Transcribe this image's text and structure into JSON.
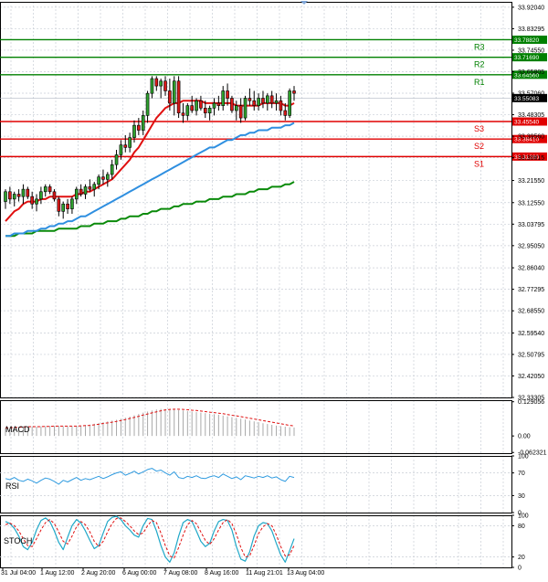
{
  "chart_data": {
    "type": "candlestick",
    "price_axis": {
      "ylim": [
        32.333,
        33.92
      ],
      "ticks": [
        "33.92040",
        "33.83295",
        "33.74550",
        "33.65805",
        "33.57060",
        "33.48305",
        "33.39560",
        "33.30815",
        "33.21550",
        "33.12550",
        "33.03795",
        "32.95050",
        "32.86040",
        "32.77295",
        "32.68550",
        "32.59540",
        "32.50795",
        "32.42050",
        "32.33305"
      ],
      "current_price": "33.55083"
    },
    "time_labels": [
      "31 Jul 04:00",
      "1 Aug 12:00",
      "2 Aug 20:00",
      "6 Aug 00:00",
      "7 Aug 08:00",
      "8 Aug 16:00",
      "11 Aug 21:01",
      "13 Aug 04:00"
    ],
    "levels": [
      {
        "name": "R3",
        "value": 33.7882,
        "label": "33.78820",
        "color": "#008000"
      },
      {
        "name": "R2",
        "value": 33.7169,
        "label": "33.71690",
        "color": "#008000"
      },
      {
        "name": "R1",
        "value": 33.6456,
        "label": "33.64560",
        "color": "#008000"
      },
      {
        "name": "S3",
        "value": 33.4554,
        "label": "33.45540",
        "color": "#e00000"
      },
      {
        "name": "S2",
        "value": 33.3841,
        "label": "33.38410",
        "color": "#e00000"
      },
      {
        "name": "S1",
        "value": 33.3128,
        "label": "33.31280",
        "color": "#e00000"
      }
    ],
    "candles": [
      [
        33.13,
        33.18,
        33.1,
        33.17
      ],
      [
        33.17,
        33.19,
        33.12,
        33.14
      ],
      [
        33.14,
        33.17,
        33.11,
        33.16
      ],
      [
        33.16,
        33.18,
        33.13,
        33.15
      ],
      [
        33.15,
        33.2,
        33.12,
        33.18
      ],
      [
        33.18,
        33.19,
        33.14,
        33.15
      ],
      [
        33.15,
        33.17,
        33.1,
        33.12
      ],
      [
        33.12,
        33.16,
        33.09,
        33.14
      ],
      [
        33.14,
        33.19,
        33.12,
        33.17
      ],
      [
        33.17,
        33.2,
        33.15,
        33.19
      ],
      [
        33.19,
        33.2,
        33.16,
        33.17
      ],
      [
        33.17,
        33.18,
        33.13,
        33.14
      ],
      [
        33.14,
        33.15,
        33.07,
        33.09
      ],
      [
        33.09,
        33.13,
        33.06,
        33.12
      ],
      [
        33.12,
        33.14,
        33.08,
        33.1
      ],
      [
        33.1,
        33.15,
        33.08,
        33.14
      ],
      [
        33.14,
        33.19,
        33.12,
        33.18
      ],
      [
        33.18,
        33.2,
        33.15,
        33.16
      ],
      [
        33.16,
        33.2,
        33.14,
        33.19
      ],
      [
        33.19,
        33.22,
        33.17,
        33.18
      ],
      [
        33.18,
        33.21,
        33.15,
        33.2
      ],
      [
        33.2,
        33.24,
        33.18,
        33.23
      ],
      [
        33.23,
        33.26,
        33.2,
        33.22
      ],
      [
        33.22,
        33.25,
        33.19,
        33.24
      ],
      [
        33.24,
        33.3,
        33.22,
        33.28
      ],
      [
        33.28,
        33.34,
        33.26,
        33.32
      ],
      [
        33.32,
        33.38,
        33.3,
        33.36
      ],
      [
        33.36,
        33.4,
        33.33,
        33.35
      ],
      [
        33.35,
        33.41,
        33.33,
        33.39
      ],
      [
        33.39,
        33.46,
        33.37,
        33.44
      ],
      [
        33.44,
        33.47,
        33.4,
        33.42
      ],
      [
        33.42,
        33.5,
        33.4,
        33.48
      ],
      [
        33.48,
        33.58,
        33.45,
        33.57
      ],
      [
        33.57,
        33.64,
        33.55,
        33.63
      ],
      [
        33.63,
        33.64,
        33.58,
        33.6
      ],
      [
        33.6,
        33.63,
        33.55,
        33.62
      ],
      [
        33.62,
        33.64,
        33.56,
        33.58
      ],
      [
        33.58,
        33.63,
        33.5,
        33.53
      ],
      [
        33.53,
        33.64,
        33.48,
        33.62
      ],
      [
        33.62,
        33.64,
        33.47,
        33.49
      ],
      [
        33.49,
        33.53,
        33.45,
        33.48
      ],
      [
        33.48,
        33.53,
        33.46,
        33.52
      ],
      [
        33.52,
        33.56,
        33.49,
        33.5
      ],
      [
        33.5,
        33.55,
        33.48,
        33.54
      ],
      [
        33.54,
        33.56,
        33.5,
        33.51
      ],
      [
        33.51,
        33.54,
        33.47,
        33.49
      ],
      [
        33.49,
        33.52,
        33.46,
        33.51
      ],
      [
        33.51,
        33.55,
        33.48,
        33.53
      ],
      [
        33.53,
        33.56,
        33.5,
        33.52
      ],
      [
        33.52,
        33.6,
        33.5,
        33.58
      ],
      [
        33.58,
        33.61,
        33.52,
        33.55
      ],
      [
        33.55,
        33.56,
        33.49,
        33.5
      ],
      [
        33.5,
        33.54,
        33.46,
        33.52
      ],
      [
        33.52,
        33.55,
        33.45,
        33.47
      ],
      [
        33.47,
        33.56,
        33.46,
        33.55
      ],
      [
        33.55,
        33.59,
        33.52,
        33.54
      ],
      [
        33.54,
        33.58,
        33.5,
        33.52
      ],
      [
        33.52,
        33.57,
        33.5,
        33.55
      ],
      [
        33.55,
        33.58,
        33.51,
        33.53
      ],
      [
        33.53,
        33.57,
        33.5,
        33.56
      ],
      [
        33.56,
        33.58,
        33.51,
        33.53
      ],
      [
        33.53,
        33.57,
        33.5,
        33.54
      ],
      [
        33.54,
        33.56,
        33.48,
        33.5
      ],
      [
        33.5,
        33.53,
        33.46,
        33.48
      ],
      [
        33.48,
        33.59,
        33.47,
        33.58
      ],
      [
        33.58,
        33.6,
        33.54,
        33.57
      ]
    ],
    "ma_fast": [
      33.05,
      33.07,
      33.09,
      33.1,
      33.12,
      33.13,
      33.13,
      33.13,
      33.14,
      33.14,
      33.15,
      33.15,
      33.15,
      33.15,
      33.15,
      33.15,
      33.16,
      33.16,
      33.17,
      33.17,
      33.18,
      33.19,
      33.2,
      33.21,
      33.22,
      33.24,
      33.26,
      33.28,
      33.3,
      33.33,
      33.35,
      33.38,
      33.41,
      33.44,
      33.47,
      33.49,
      33.51,
      33.52,
      33.53,
      33.53,
      33.54,
      33.54,
      33.54,
      33.54,
      33.54,
      33.53,
      33.53,
      33.53,
      33.53,
      33.53,
      33.53,
      33.53,
      33.52,
      33.52,
      33.52,
      33.52,
      33.52,
      33.52,
      33.53,
      33.53,
      33.53,
      33.53,
      33.53,
      33.52,
      33.52,
      33.53
    ],
    "ma_mid": [
      32.99,
      32.99,
      33.0,
      33.0,
      33.0,
      33.01,
      33.01,
      33.01,
      33.02,
      33.02,
      33.03,
      33.03,
      33.04,
      33.04,
      33.05,
      33.05,
      33.06,
      33.07,
      33.07,
      33.08,
      33.09,
      33.1,
      33.11,
      33.12,
      33.13,
      33.14,
      33.15,
      33.16,
      33.17,
      33.18,
      33.19,
      33.2,
      33.21,
      33.22,
      33.23,
      33.24,
      33.25,
      33.26,
      33.27,
      33.28,
      33.29,
      33.3,
      33.31,
      33.32,
      33.33,
      33.34,
      33.35,
      33.35,
      33.36,
      33.37,
      33.38,
      33.38,
      33.39,
      33.4,
      33.4,
      33.41,
      33.41,
      33.42,
      33.42,
      33.42,
      33.43,
      33.43,
      33.43,
      33.44,
      33.44,
      33.45
    ],
    "ma_slow": [
      32.99,
      32.99,
      32.99,
      33.0,
      33.0,
      33.0,
      33.0,
      33.01,
      33.01,
      33.01,
      33.01,
      33.01,
      33.02,
      33.02,
      33.02,
      33.02,
      33.02,
      33.03,
      33.03,
      33.03,
      33.04,
      33.04,
      33.04,
      33.05,
      33.05,
      33.05,
      33.06,
      33.06,
      33.07,
      33.07,
      33.07,
      33.08,
      33.08,
      33.09,
      33.09,
      33.1,
      33.1,
      33.1,
      33.11,
      33.11,
      33.12,
      33.12,
      33.12,
      33.13,
      33.13,
      33.13,
      33.14,
      33.14,
      33.14,
      33.15,
      33.15,
      33.15,
      33.16,
      33.16,
      33.16,
      33.17,
      33.17,
      33.18,
      33.18,
      33.18,
      33.19,
      33.19,
      33.19,
      33.2,
      33.2,
      33.21
    ],
    "macd": {
      "label": "MACD",
      "ticks": [
        "0.129056",
        "0.00",
        "-0.062321"
      ],
      "ylim": [
        -0.065,
        0.135
      ],
      "histogram": [
        0.03,
        0.032,
        0.033,
        0.035,
        0.036,
        0.036,
        0.036,
        0.035,
        0.036,
        0.037,
        0.038,
        0.038,
        0.038,
        0.037,
        0.037,
        0.037,
        0.038,
        0.039,
        0.041,
        0.043,
        0.046,
        0.049,
        0.052,
        0.055,
        0.058,
        0.061,
        0.065,
        0.069,
        0.073,
        0.078,
        0.083,
        0.088,
        0.092,
        0.096,
        0.1,
        0.102,
        0.102,
        0.101,
        0.1,
        0.098,
        0.096,
        0.094,
        0.092,
        0.09,
        0.088,
        0.086,
        0.084,
        0.082,
        0.08,
        0.077,
        0.074,
        0.071,
        0.068,
        0.065,
        0.062,
        0.058,
        0.055,
        0.052,
        0.048,
        0.045,
        0.042,
        0.039,
        0.037,
        0.035,
        0.033,
        0.032
      ],
      "signal": [
        0.03,
        0.031,
        0.032,
        0.033,
        0.034,
        0.035,
        0.035,
        0.035,
        0.035,
        0.036,
        0.036,
        0.037,
        0.037,
        0.037,
        0.037,
        0.037,
        0.037,
        0.038,
        0.039,
        0.04,
        0.042,
        0.044,
        0.047,
        0.049,
        0.052,
        0.055,
        0.058,
        0.062,
        0.066,
        0.07,
        0.074,
        0.079,
        0.083,
        0.087,
        0.091,
        0.095,
        0.098,
        0.1,
        0.101,
        0.101,
        0.1,
        0.099,
        0.097,
        0.096,
        0.094,
        0.092,
        0.09,
        0.088,
        0.086,
        0.084,
        0.081,
        0.078,
        0.076,
        0.073,
        0.07,
        0.067,
        0.064,
        0.061,
        0.058,
        0.055,
        0.052,
        0.049,
        0.046,
        0.043,
        0.04,
        0.038
      ]
    },
    "rsi": {
      "label": "RSI",
      "ticks": [
        "100",
        "70",
        "30",
        "0"
      ],
      "ylim": [
        0,
        100
      ],
      "values": [
        60,
        58,
        62,
        57,
        55,
        59,
        56,
        52,
        57,
        61,
        59,
        55,
        50,
        57,
        54,
        58,
        62,
        57,
        60,
        58,
        61,
        64,
        60,
        63,
        67,
        70,
        72,
        66,
        69,
        73,
        68,
        72,
        76,
        78,
        73,
        75,
        70,
        66,
        72,
        62,
        60,
        64,
        62,
        65,
        61,
        60,
        63,
        65,
        62,
        68,
        64,
        60,
        63,
        58,
        65,
        63,
        61,
        64,
        62,
        65,
        61,
        63,
        58,
        55,
        64,
        62
      ]
    },
    "stoch": {
      "label": "STOCH",
      "ticks": [
        "100",
        "80",
        "20",
        "0"
      ],
      "ylim": [
        0,
        100
      ],
      "k": [
        88,
        84,
        75,
        60,
        40,
        34,
        48,
        72,
        90,
        95,
        88,
        70,
        48,
        34,
        58,
        80,
        92,
        85,
        70,
        52,
        36,
        42,
        66,
        88,
        96,
        98,
        92,
        80,
        72,
        62,
        58,
        80,
        94,
        92,
        70,
        42,
        20,
        10,
        28,
        60,
        86,
        92,
        88,
        70,
        50,
        40,
        46,
        70,
        88,
        92,
        90,
        72,
        40,
        16,
        12,
        30,
        60,
        80,
        86,
        84,
        70,
        46,
        24,
        10,
        32,
        55
      ],
      "d": [
        82,
        85,
        80,
        70,
        55,
        42,
        40,
        55,
        72,
        86,
        92,
        84,
        68,
        50,
        45,
        60,
        78,
        88,
        82,
        68,
        50,
        40,
        50,
        68,
        84,
        94,
        95,
        88,
        80,
        70,
        63,
        66,
        80,
        90,
        86,
        66,
        42,
        22,
        18,
        38,
        62,
        82,
        90,
        84,
        68,
        52,
        44,
        55,
        72,
        86,
        92,
        84,
        64,
        38,
        20,
        22,
        42,
        65,
        78,
        84,
        80,
        62,
        40,
        22,
        24,
        42
      ]
    }
  }
}
